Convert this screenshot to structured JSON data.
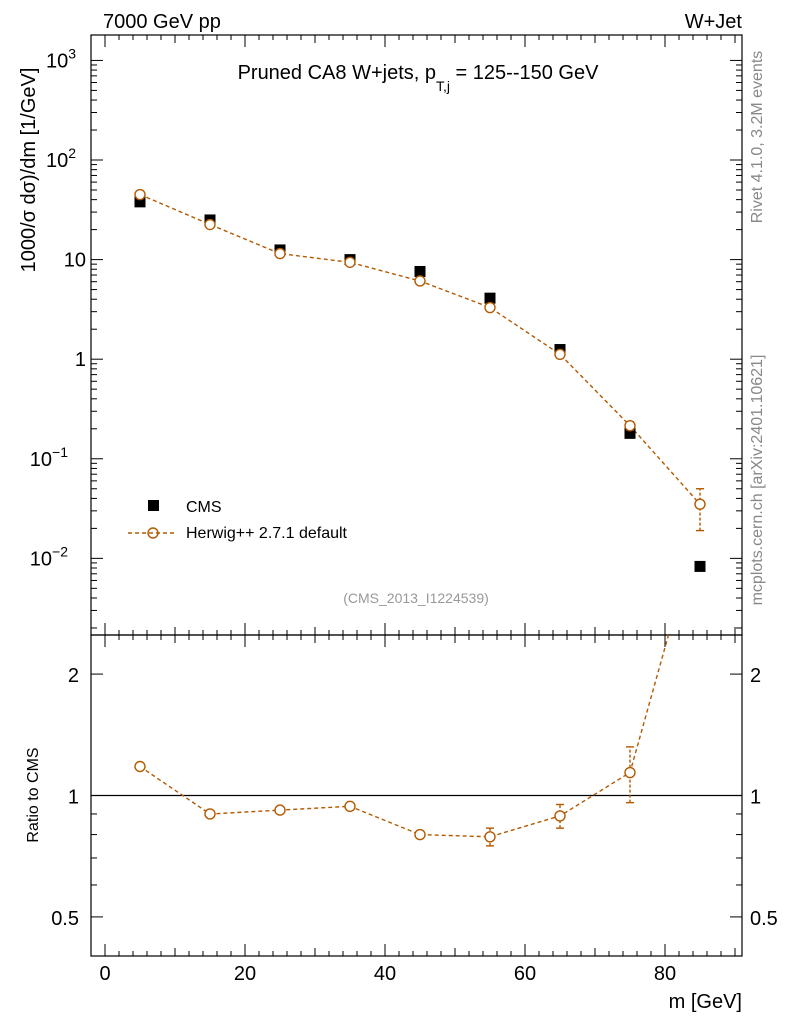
{
  "header": {
    "left": "7000 GeV pp",
    "right": "W+Jet",
    "title_main": "Pruned CA8 W+jets, p",
    "title_sub": "T,j",
    "title_tail": " = 125--150 GeV"
  },
  "side": {
    "rivet": "Rivet 4.1.0,  3.2M events",
    "mcplots": "mcplots.cern.ch [arXiv:2401.10621]"
  },
  "analysis_id": "(CMS_2013_I1224539)",
  "axes": {
    "ylabel_main": "1000/σ  dσ)/dm [1/GeV]",
    "ylabel_ratio": "Ratio to CMS",
    "xlabel": "m [GeV]"
  },
  "legend": {
    "data": "CMS",
    "mc": "Herwig++ 2.7.1 default"
  },
  "colors": {
    "data": "#000000",
    "mc": "#b35900",
    "axis": "#000000",
    "id_text": "#999999",
    "side_text": "#888888"
  },
  "chart_data": [
    {
      "type": "scatter",
      "panel": "main",
      "yscale": "log",
      "xlim": [
        -2,
        91
      ],
      "ylim": [
        0.0017,
        1800
      ],
      "x": [
        5,
        15,
        25,
        35,
        45,
        55,
        65,
        75,
        85
      ],
      "xticks": [
        0,
        20,
        40,
        60,
        80
      ],
      "ytick_labels": [
        {
          "value": 0.01,
          "base": "10",
          "exp": "−2"
        },
        {
          "value": 0.1,
          "base": "10",
          "exp": "−1"
        },
        {
          "value": 1,
          "base": "1",
          "exp": ""
        },
        {
          "value": 10,
          "base": "10",
          "exp": ""
        },
        {
          "value": 100,
          "base": "10",
          "exp": "2"
        },
        {
          "value": 1000,
          "base": "10",
          "exp": "3"
        }
      ],
      "series": [
        {
          "name": "CMS",
          "style": "square",
          "values": [
            38,
            25,
            12.5,
            10,
            7.6,
            4.1,
            1.25,
            0.18,
            0.0083
          ]
        },
        {
          "name": "Herwig++ 2.7.1 default",
          "style": "open-circle-dashed",
          "values": [
            45,
            22.5,
            11.5,
            9.4,
            6.1,
            3.3,
            1.12,
            0.215,
            0.035
          ],
          "err_low": [
            0,
            0,
            0,
            0,
            0,
            0,
            0,
            0.02,
            0.016
          ],
          "err_high": [
            0,
            0,
            0,
            0,
            0,
            0,
            0,
            0.02,
            0.015
          ]
        }
      ]
    },
    {
      "type": "line",
      "panel": "ratio",
      "yscale": "log",
      "xlim": [
        -2,
        91
      ],
      "ylim": [
        0.4,
        2.5
      ],
      "yticks": [
        0.5,
        1,
        2
      ],
      "ytick_labels": [
        "0.5",
        "1",
        "2"
      ],
      "reference": 1,
      "series": [
        {
          "name": "Herwig++ 2.7.1 default / CMS",
          "x": [
            5,
            15,
            25,
            35,
            45,
            55,
            65,
            75,
            80.5
          ],
          "values": [
            1.18,
            0.9,
            0.92,
            0.94,
            0.8,
            0.79,
            0.89,
            1.14,
            2.5
          ],
          "err_low": [
            0,
            0,
            0,
            0,
            0,
            0.04,
            0.06,
            0.18,
            0
          ],
          "err_high": [
            0,
            0,
            0,
            0,
            0,
            0.04,
            0.06,
            0.18,
            0
          ]
        }
      ]
    }
  ]
}
